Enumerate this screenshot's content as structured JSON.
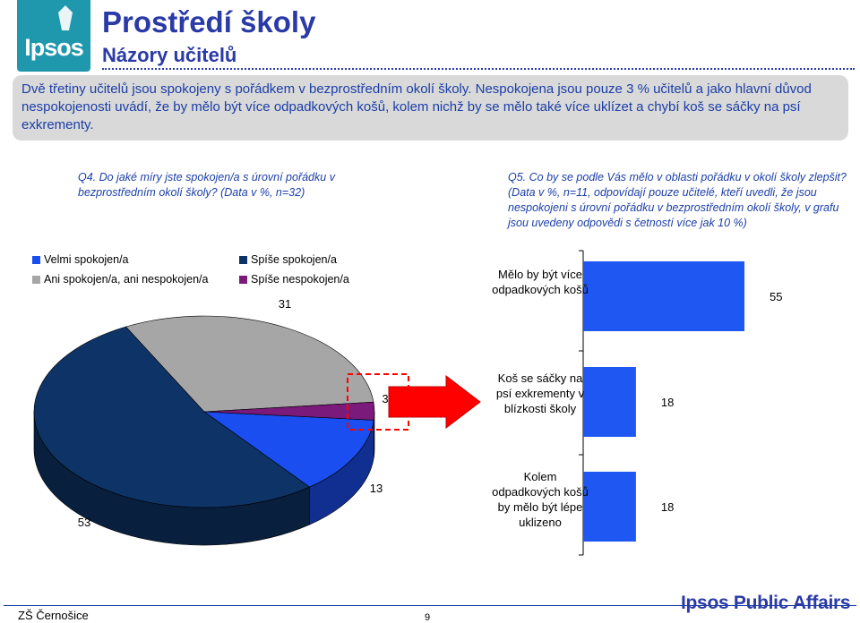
{
  "header": {
    "logo_text": "Ipsos",
    "title": "Prostředí školy",
    "subtitle": "Názory učitelů"
  },
  "intro": "Dvě třetiny učitelů jsou spokojeny s pořádkem v bezprostředním okolí školy. Nespokojena jsou pouze 3 % učitelů a jako hlavní důvod nespokojenosti uvádí, že by mělo být více odpadkových košů, kolem nichž by se mělo také více uklízet a chybí koš se sáčky na psí exkrementy.",
  "q4": "Q4. Do jaké míry jste spokojen/a s úrovní pořádku v bezprostředním okolí školy? (Data v %, n=32)",
  "q5": "Q5. Co by se podle Vás mělo v oblasti pořádku v okolí školy zlepšit? (Data v %, n=11, odpovídají pouze učitelé, kteří uvedli, že jsou nespokojeni s úrovní pořádku v bezprostředním okolí školy, v grafu jsou uvedeny odpovědi s četností více jak 10 %)",
  "colors": {
    "velmi": "#1a4ef0",
    "spise_spokojen": "#0e3366",
    "ani": "#a6a6a6",
    "spise_nespokojen": "#7b1a7a",
    "arrow": "#ff0000",
    "bars": "#1f57f2"
  },
  "chart_data": [
    {
      "type": "pie",
      "legend": [
        "Velmi spokojen/a",
        "Spíše spokojen/a",
        "Ani spokojen/a, ani nespokojen/a",
        "Spíše nespokojen/a"
      ],
      "slices": [
        {
          "name": "Velmi spokojen/a",
          "value": 13
        },
        {
          "name": "Spíše spokojen/a",
          "value": 53
        },
        {
          "name": "Ani spokojen/a, ani nespokojen/a",
          "value": 31
        },
        {
          "name": "Spíše nespokojen/a",
          "value": 3
        }
      ]
    },
    {
      "type": "bar",
      "orientation": "horizontal",
      "categories": [
        "Mělo by být více odpadkových košů",
        "Koš se sáčky na psí exkrementy v blízkosti školy",
        "Kolem odpadkových košů by mělo být lépe uklizeno"
      ],
      "values": [
        55,
        18,
        18
      ],
      "xlim": [
        0,
        60
      ]
    }
  ],
  "footer": {
    "brand": "Ipsos Public Affairs",
    "left": "ZŠ Černošice",
    "page": "9"
  }
}
